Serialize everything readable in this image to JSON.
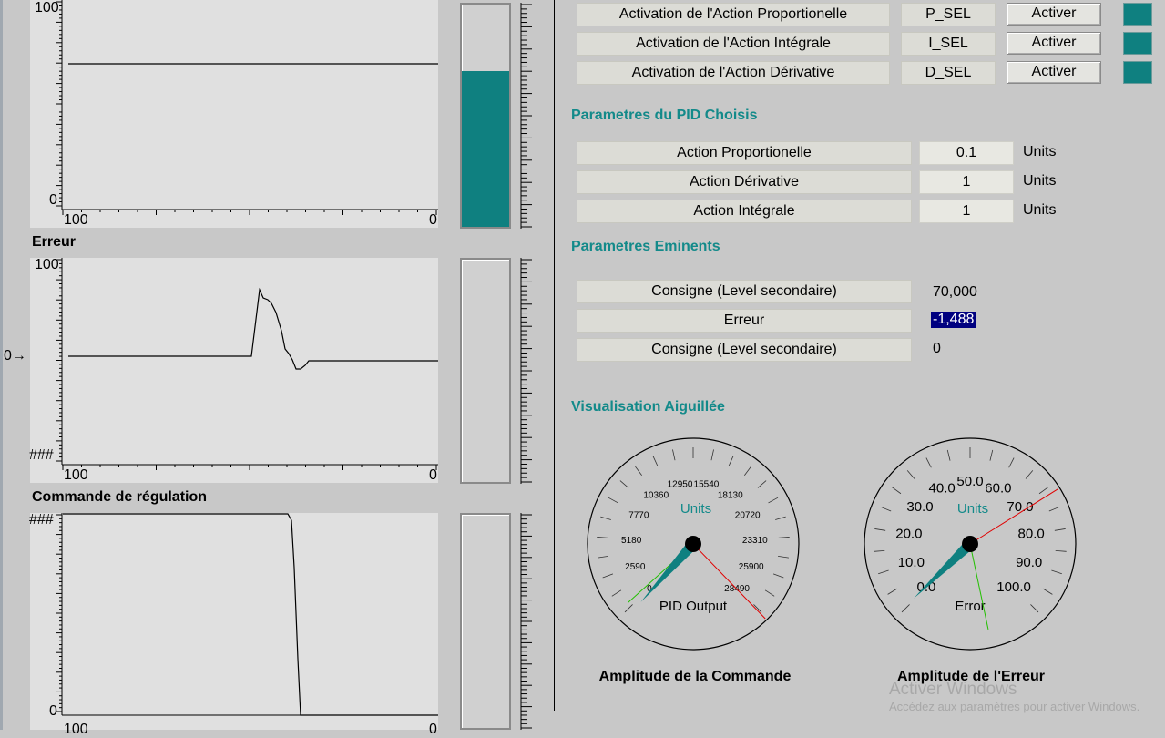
{
  "charts": {
    "top": {
      "ymax_label": "100",
      "ymin_label": "0",
      "xleft_label": "100",
      "xright_label": "0",
      "line_value": 70,
      "bar_fill": 0.7
    },
    "erreur": {
      "title": "Erreur",
      "ymax_label": "100",
      "ymin_label": "###",
      "left_marker": "0",
      "xleft_label": "100",
      "xright_label": "0"
    },
    "commande": {
      "title": "Commande de régulation",
      "ymax_label": "###",
      "ymin_label": "0",
      "xleft_label": "100",
      "xright_label": "0"
    }
  },
  "activation": [
    {
      "label": "Activation de l'Action Proportionelle",
      "var": "P_SEL",
      "button": "Activer"
    },
    {
      "label": "Activation de l'Action Intégrale",
      "var": "I_SEL",
      "button": "Activer"
    },
    {
      "label": "Activation de l'Action Dérivative",
      "var": "D_SEL",
      "button": "Activer"
    }
  ],
  "pid": {
    "heading": "Parametres du PID Choisis",
    "rows": [
      {
        "label": "Action Proportionelle",
        "value": "0.1",
        "unit": "Units"
      },
      {
        "label": "Action Dérivative",
        "value": "1",
        "unit": "Units"
      },
      {
        "label": "Action Intégrale",
        "value": "1",
        "unit": "Units"
      }
    ]
  },
  "eminents": {
    "heading": "Parametres Eminents",
    "rows": [
      {
        "label": "Consigne (Level secondaire)",
        "value": "70,000"
      },
      {
        "label": "Erreur",
        "value": "-1,488"
      },
      {
        "label": "Consigne (Level secondaire)",
        "value": "0"
      }
    ]
  },
  "gauges": {
    "heading": "Visualisation Aiguillée",
    "left": {
      "units": "Units",
      "name": "PID Output",
      "caption": "Amplitude de la Commande",
      "scale": [
        "0",
        "2590",
        "5180",
        "7770",
        "10360",
        "12950",
        "15540",
        "18130",
        "20720",
        "23310",
        "25900",
        "28490"
      ]
    },
    "right": {
      "units": "Units",
      "name": "Error",
      "caption": "Amplitude de l'Erreur",
      "scale": [
        "0.0",
        "10.0",
        "20.0",
        "30.0",
        "40.0",
        "50.0",
        "60.0",
        "70.0",
        "80.0",
        "90.0",
        "100.0"
      ]
    }
  },
  "watermark": {
    "line1": "Activer Windows",
    "line2": "Accédez aux paramètres pour activer Windows."
  },
  "colors": {
    "teal": "#0f8080",
    "heading": "#138a8a"
  }
}
